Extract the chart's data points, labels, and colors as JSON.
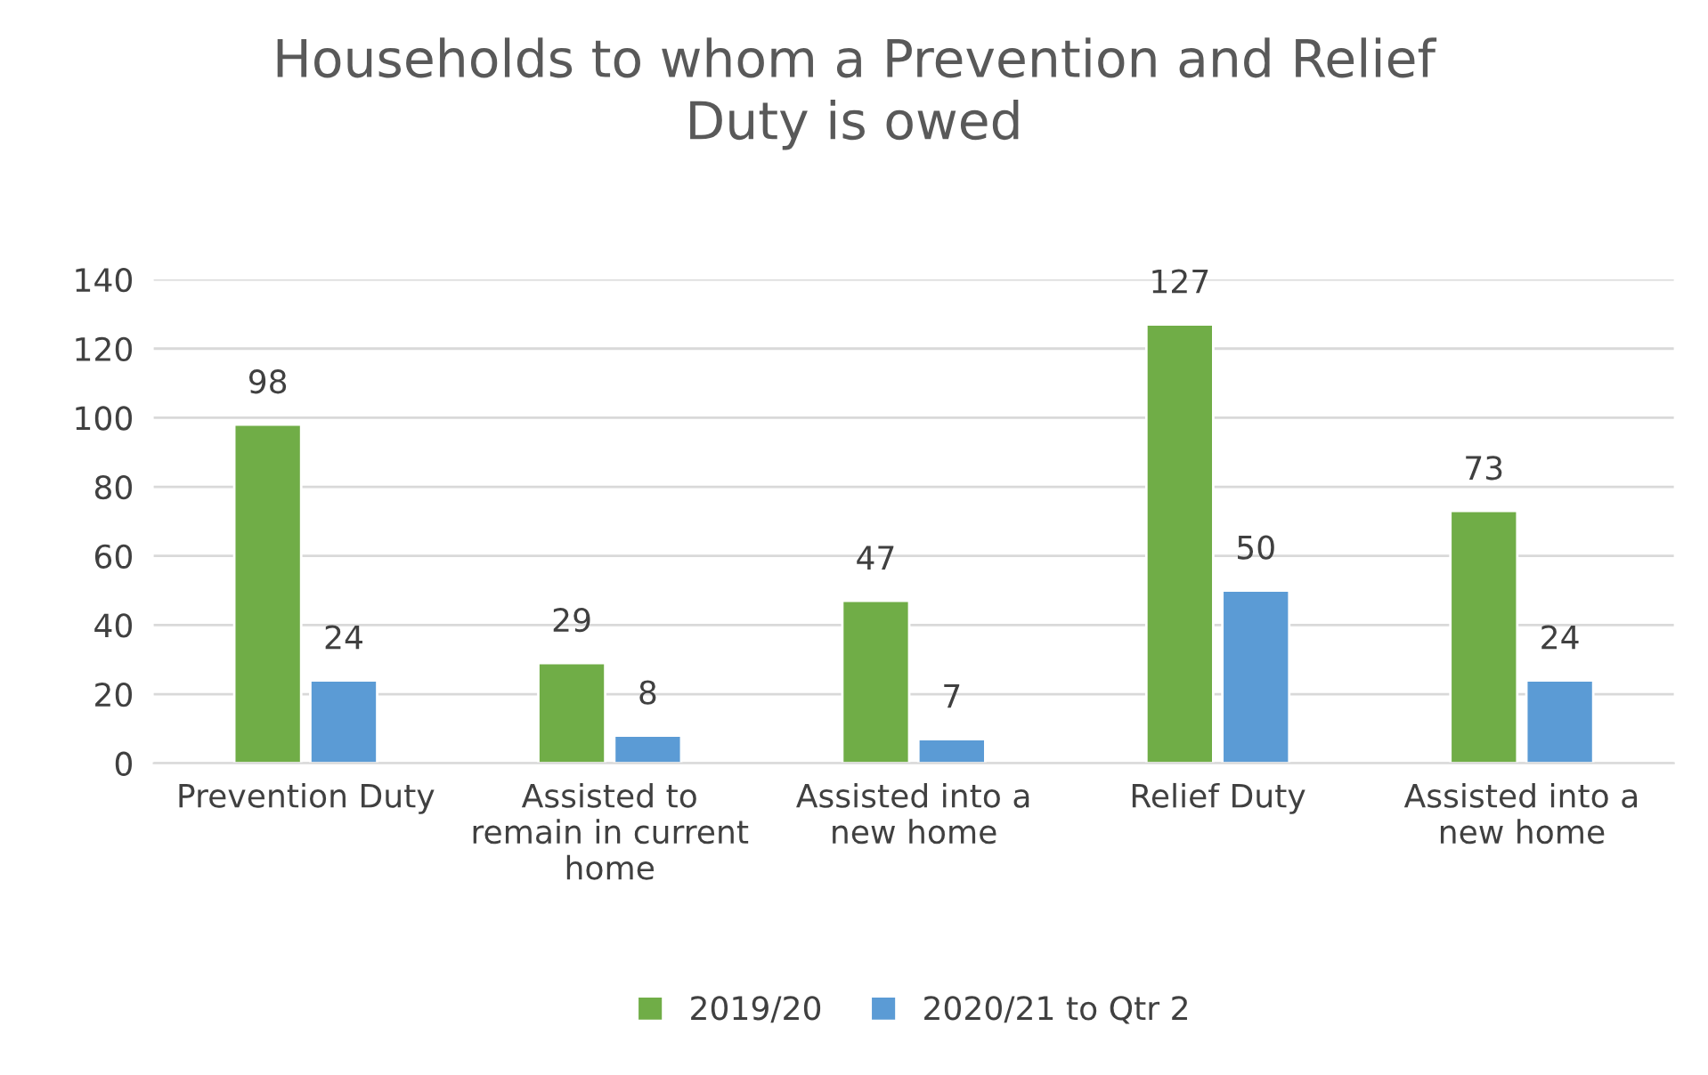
{
  "chart_data": {
    "type": "bar",
    "title": "Households to whom a Prevention and Relief Duty is owed",
    "categories": [
      "Prevention Duty",
      "Assisted to remain in current home",
      "Assisted into a new home",
      "Relief Duty",
      "Assisted into a new home"
    ],
    "series": [
      {
        "name": "2019/20",
        "color": "#70ad47",
        "values": [
          98,
          29,
          47,
          127,
          73
        ]
      },
      {
        "name": "2020/21 to Qtr 2",
        "color": "#5b9bd5",
        "values": [
          24,
          8,
          7,
          50,
          24
        ]
      }
    ],
    "ylim": [
      0,
      140
    ],
    "yticks": [
      0,
      20,
      40,
      60,
      80,
      100,
      120,
      140
    ],
    "grid": "y",
    "legend": "bottom",
    "data_labels": true
  }
}
